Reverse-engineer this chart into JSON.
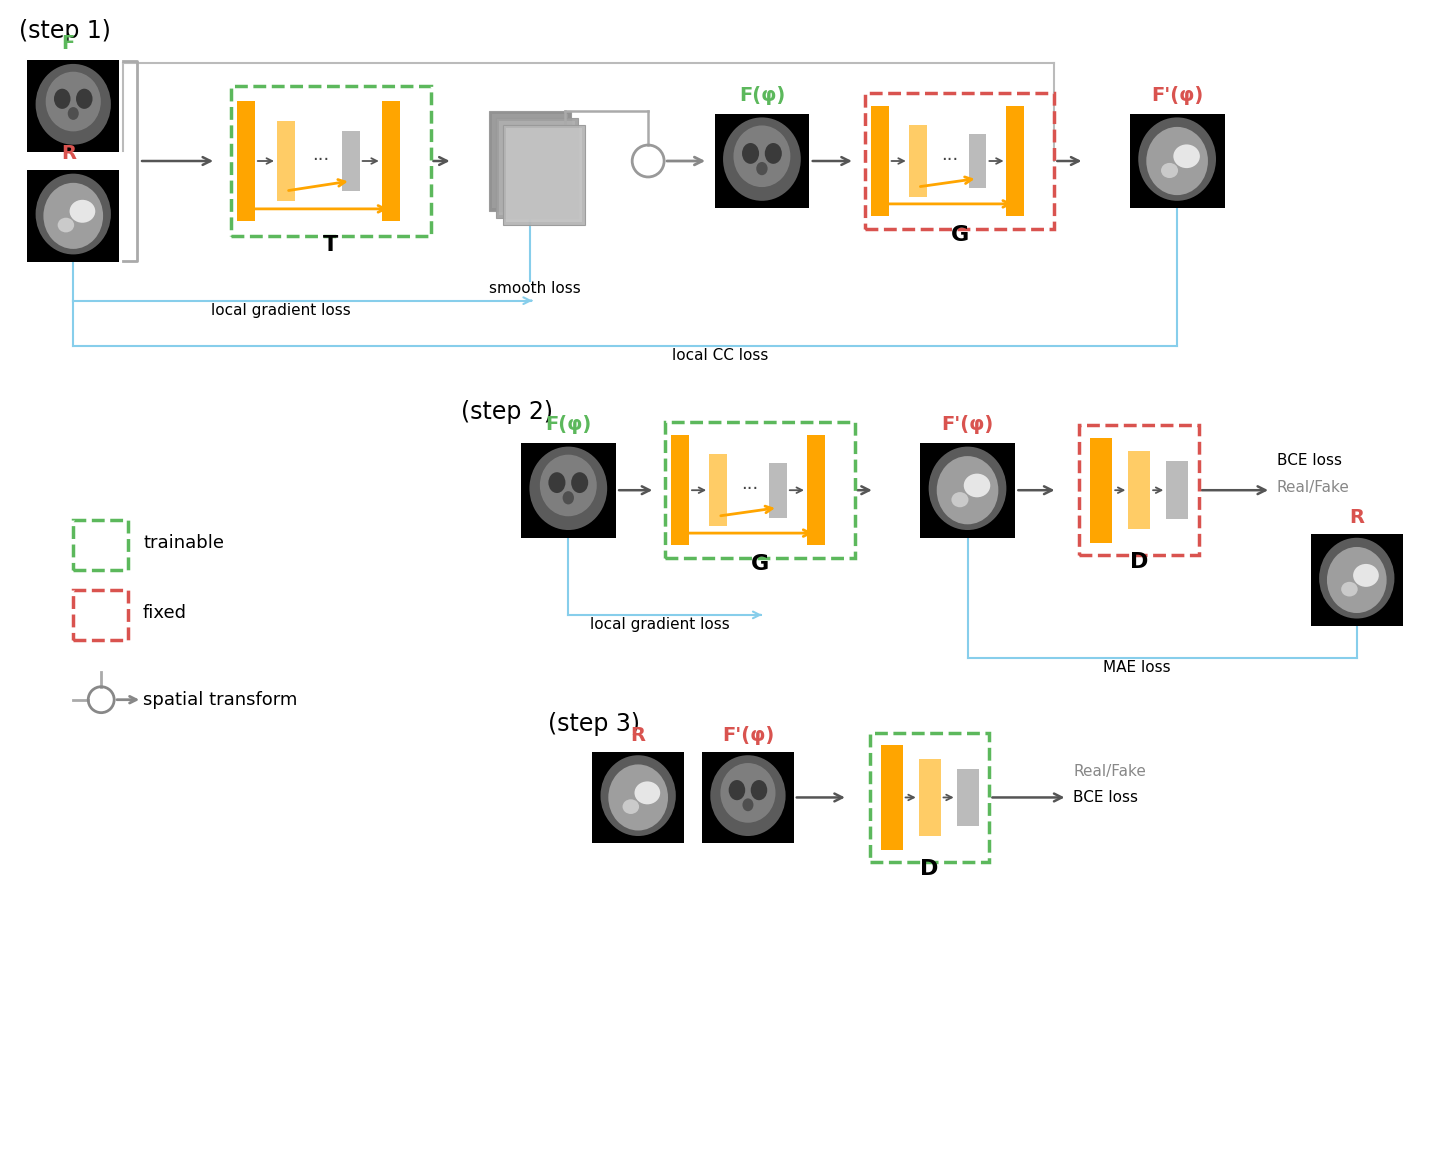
{
  "bg_color": "#ffffff",
  "green_color": "#5CB85C",
  "red_color": "#D9534F",
  "orange_color": "#FFA500",
  "orange_light": "#FFCC66",
  "gray_bar": "#BBBBBB",
  "arrow_color": "#555555",
  "blue_color": "#87CEEB",
  "step1_label": "(step 1)",
  "step2_label": "(step 2)",
  "step3_label": "(step 3)",
  "T_label": "T",
  "G_label": "G",
  "D_label": "D",
  "F_label": "F",
  "R_label": "R",
  "Fphi_label": "F(φ)",
  "Fprime_label": "F'(φ)",
  "smooth_loss": "smooth loss",
  "local_gradient_loss": "local gradient loss",
  "local_CC_loss": "local CC loss",
  "MAE_loss": "MAE loss",
  "BCE_loss": "BCE loss",
  "RealFake": "Real/Fake",
  "trainable_label": "trainable",
  "fixed_label": "fixed",
  "spatial_transform_label": "spatial transform"
}
